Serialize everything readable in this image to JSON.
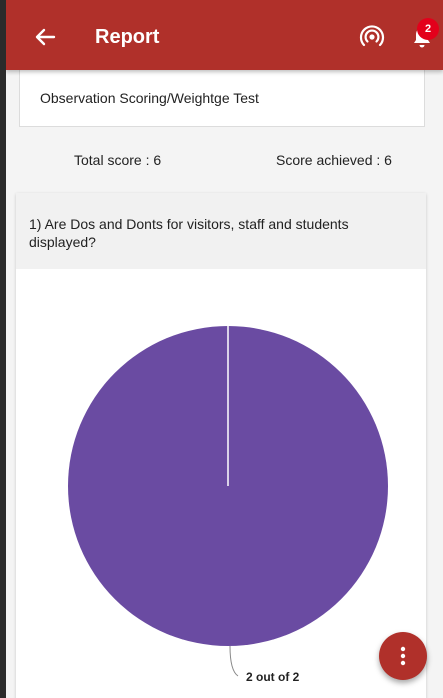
{
  "appbar": {
    "title": "Report",
    "color": "#b0302a",
    "back_icon": "arrow-left-icon",
    "cast_icon": "live-broadcast-icon",
    "bell_icon": "bell-icon",
    "notification_count": "2"
  },
  "test": {
    "name": "Observation Scoring/Weightge Test"
  },
  "scores": {
    "total": "Total score : 6",
    "achieved": "Score achieved : 6"
  },
  "question": {
    "text": "1) Are Dos and Donts for visitors, staff and students displayed?"
  },
  "chart_data": {
    "type": "pie",
    "slices": [
      {
        "label": "2 out of 2",
        "value": 2,
        "color": "#6a4ba2"
      }
    ]
  },
  "fab": {
    "icon": "more-vertical-icon"
  }
}
